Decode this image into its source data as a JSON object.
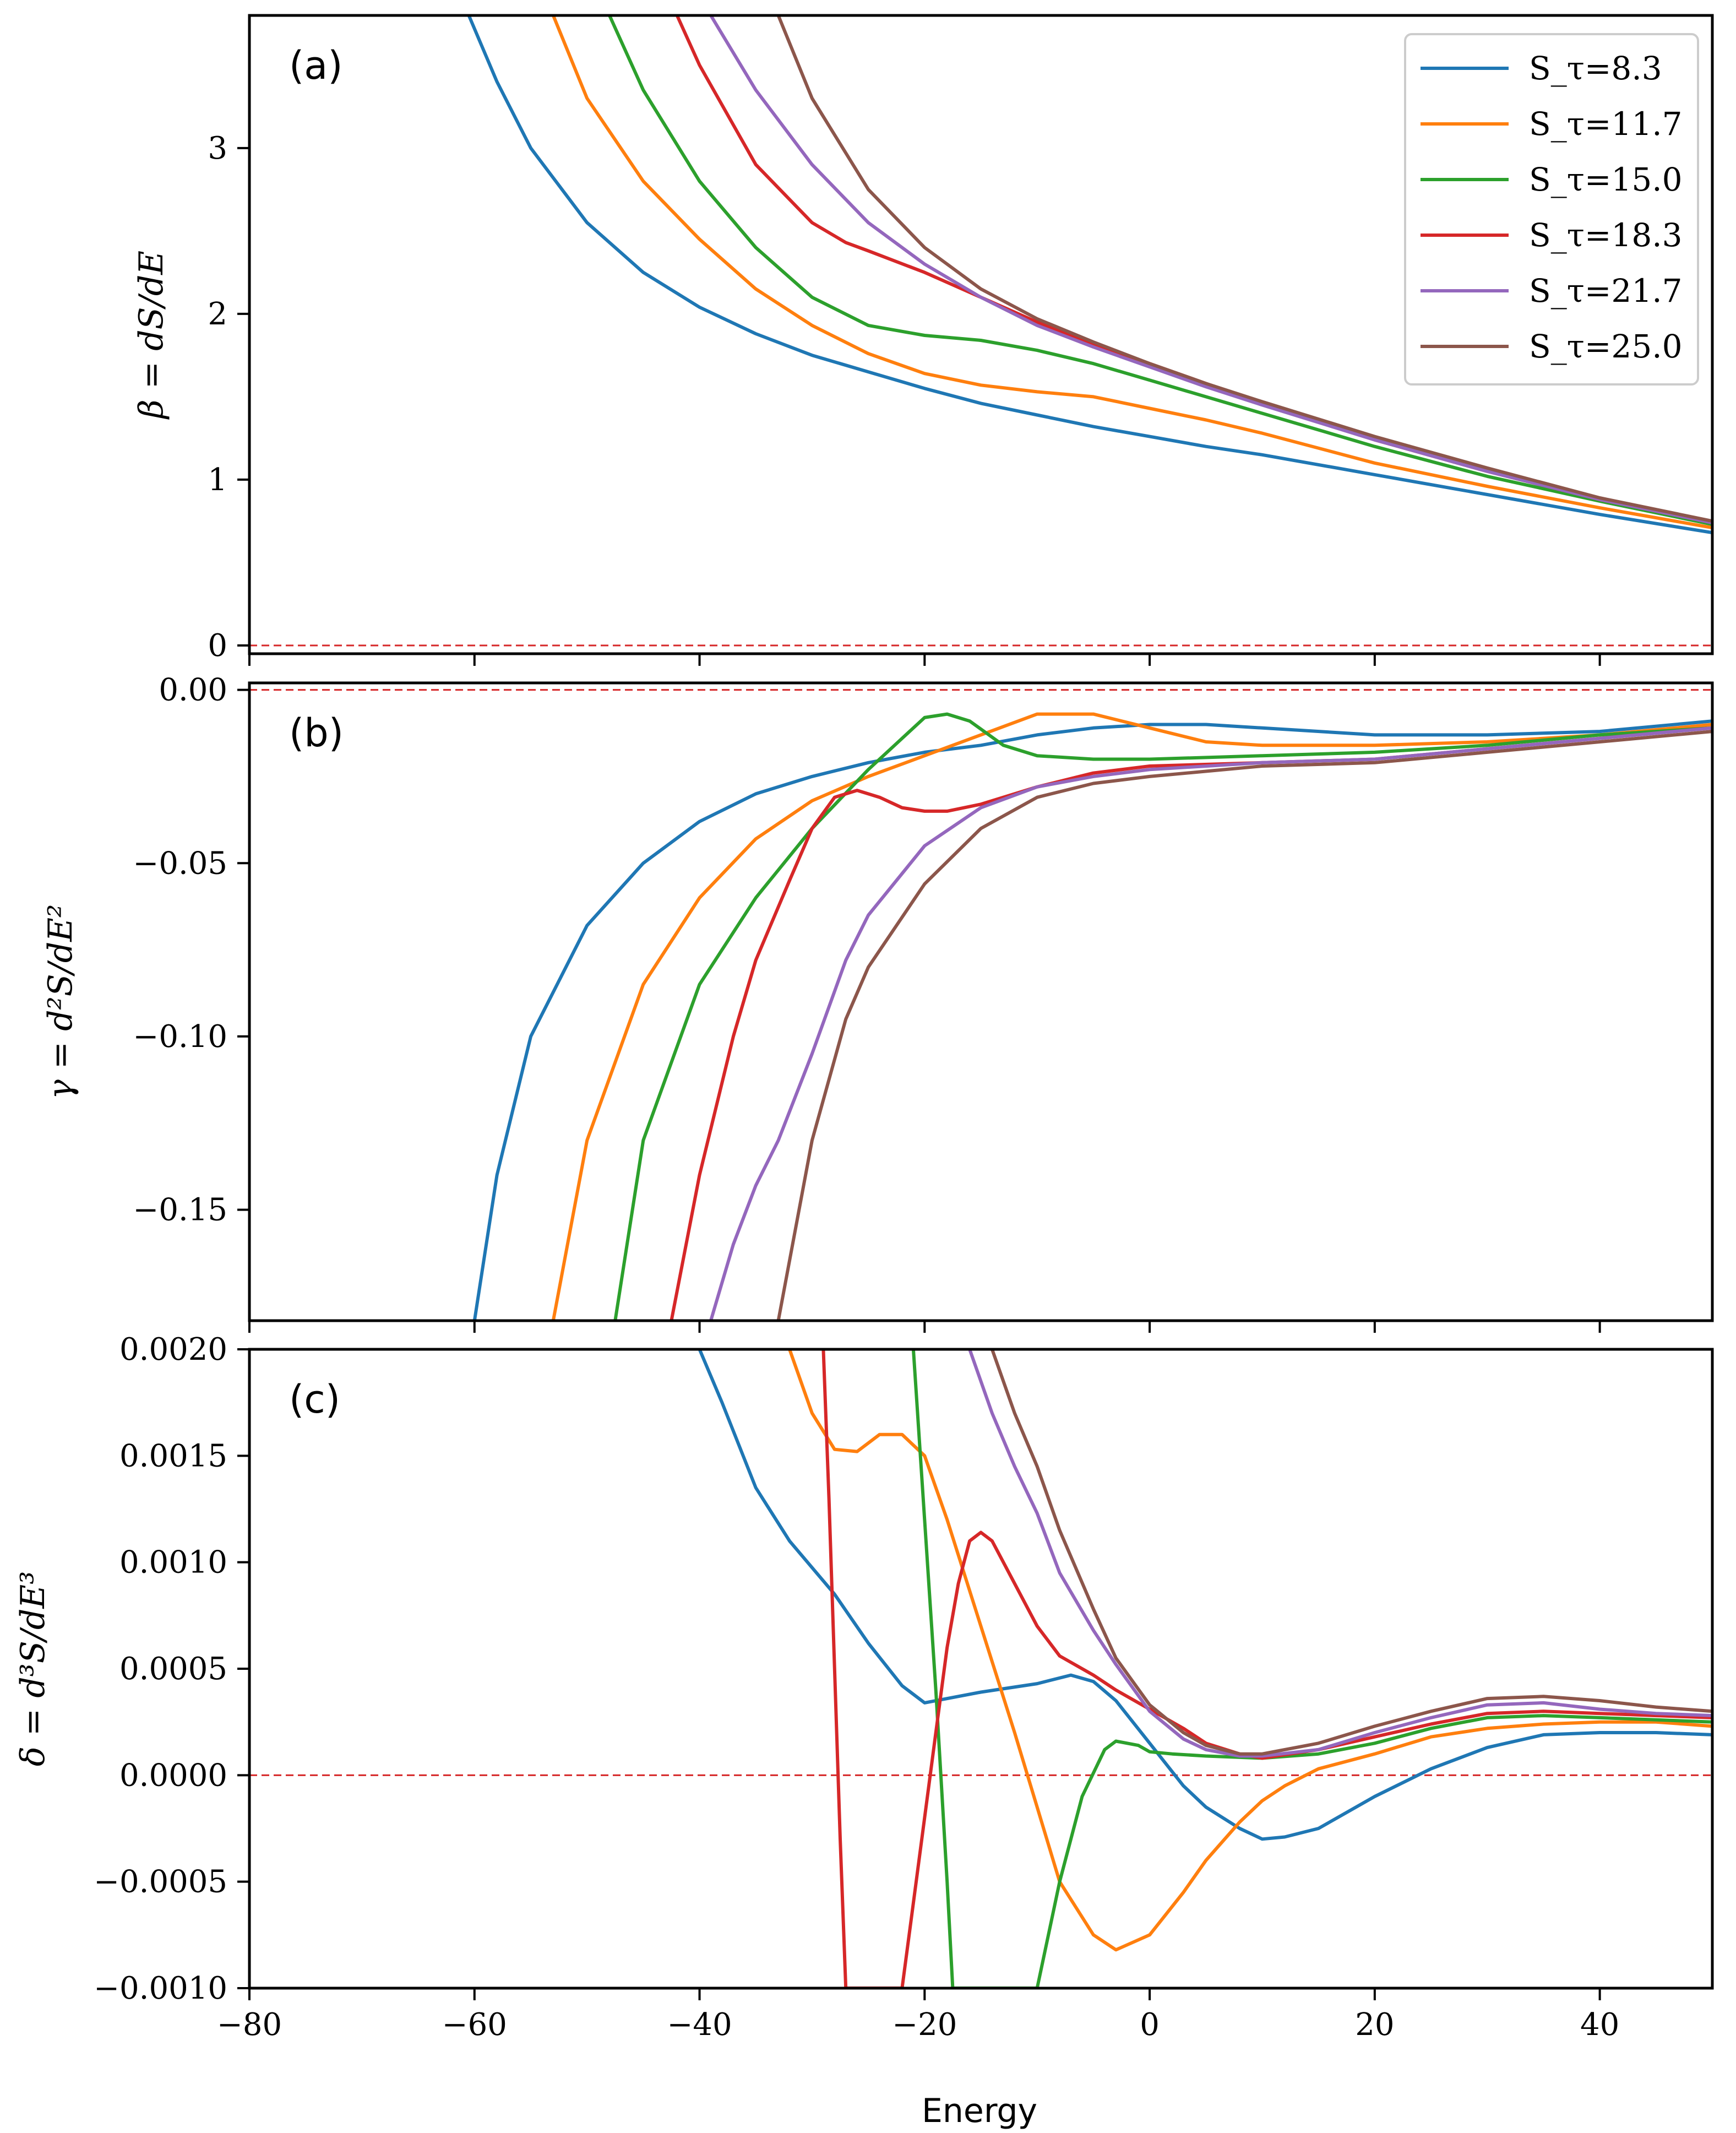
{
  "xlabel": "Energy",
  "colors": {
    "S8.3": "#1f77b4",
    "S11.7": "#ff7f0e",
    "S15.0": "#2ca02c",
    "S18.3": "#d62728",
    "S21.7": "#9467bd",
    "S25.0": "#8c564b",
    "reference": "#d62728"
  },
  "legend": {
    "placement": "top-right of panel (a)",
    "entries": [
      "S_τ=8.3",
      "S_τ=11.7",
      "S_τ=15.0",
      "S_τ=18.3",
      "S_τ=21.7",
      "S_τ=25.0"
    ]
  },
  "chart_data": [
    {
      "type": "line",
      "panel_label": "(a)",
      "ylabel": "β = dS/dE",
      "xlim": [
        -80,
        50
      ],
      "ylim": [
        -0.05,
        3.8
      ],
      "xticks": [
        -80,
        -60,
        -40,
        -20,
        0,
        20,
        40
      ],
      "yticks": [
        0,
        1,
        2,
        3
      ],
      "ytick_labels": [
        "0",
        "1",
        "2",
        "3"
      ],
      "reference_y": 0,
      "grid": false,
      "series": [
        {
          "name": "S_τ=8.3",
          "color_key": "S8.3",
          "x": [
            -60.5,
            -58,
            -55,
            -50,
            -45,
            -40,
            -35,
            -30,
            -25,
            -20,
            -15,
            -10,
            -5,
            0,
            5,
            10,
            20,
            30,
            40,
            50
          ],
          "y": [
            3.8,
            3.4,
            3.0,
            2.55,
            2.25,
            2.04,
            1.88,
            1.75,
            1.65,
            1.55,
            1.46,
            1.39,
            1.32,
            1.26,
            1.2,
            1.15,
            1.03,
            0.91,
            0.79,
            0.68
          ]
        },
        {
          "name": "S_τ=11.7",
          "color_key": "S11.7",
          "x": [
            -53,
            -50,
            -45,
            -40,
            -35,
            -30,
            -25,
            -20,
            -15,
            -10,
            -5,
            0,
            5,
            10,
            20,
            30,
            40,
            50
          ],
          "y": [
            3.8,
            3.3,
            2.8,
            2.45,
            2.15,
            1.93,
            1.76,
            1.64,
            1.57,
            1.53,
            1.5,
            1.43,
            1.36,
            1.28,
            1.1,
            0.96,
            0.83,
            0.71
          ]
        },
        {
          "name": "S_τ=15.0",
          "color_key": "S15.0",
          "x": [
            -48,
            -45,
            -40,
            -35,
            -30,
            -25,
            -20,
            -15,
            -10,
            -5,
            0,
            5,
            10,
            20,
            30,
            40,
            50
          ],
          "y": [
            3.8,
            3.35,
            2.8,
            2.4,
            2.1,
            1.93,
            1.87,
            1.84,
            1.78,
            1.7,
            1.6,
            1.5,
            1.4,
            1.2,
            1.02,
            0.87,
            0.73
          ]
        },
        {
          "name": "S_τ=18.3",
          "color_key": "S18.3",
          "x": [
            -42,
            -40,
            -35,
            -30,
            -27,
            -25,
            -20,
            -15,
            -10,
            -5,
            0,
            5,
            10,
            20,
            30,
            40,
            50
          ],
          "y": [
            3.8,
            3.5,
            2.9,
            2.55,
            2.43,
            2.38,
            2.25,
            2.1,
            1.95,
            1.82,
            1.7,
            1.58,
            1.46,
            1.24,
            1.05,
            0.88,
            0.74
          ]
        },
        {
          "name": "S_τ=21.7",
          "color_key": "S21.7",
          "x": [
            -39,
            -35,
            -30,
            -25,
            -20,
            -15,
            -10,
            -5,
            0,
            5,
            10,
            20,
            30,
            40,
            50
          ],
          "y": [
            3.8,
            3.35,
            2.9,
            2.55,
            2.3,
            2.1,
            1.93,
            1.8,
            1.68,
            1.56,
            1.45,
            1.24,
            1.05,
            0.88,
            0.74
          ]
        },
        {
          "name": "S_τ=25.0",
          "color_key": "S25.0",
          "x": [
            -33,
            -30,
            -25,
            -20,
            -15,
            -10,
            -5,
            0,
            5,
            10,
            20,
            30,
            40,
            50
          ],
          "y": [
            3.8,
            3.3,
            2.75,
            2.4,
            2.15,
            1.97,
            1.83,
            1.7,
            1.58,
            1.47,
            1.26,
            1.07,
            0.89,
            0.75
          ]
        }
      ]
    },
    {
      "type": "line",
      "panel_label": "(b)",
      "ylabel": "γ = d²S/dE²",
      "xlim": [
        -80,
        50
      ],
      "ylim": [
        -0.182,
        0.002
      ],
      "xticks": [
        -80,
        -60,
        -40,
        -20,
        0,
        20,
        40
      ],
      "yticks": [
        0.0,
        -0.05,
        -0.1,
        -0.15
      ],
      "ytick_labels": [
        "0.00",
        "−0.05",
        "−0.10",
        "−0.15"
      ],
      "reference_y": 0,
      "grid": false,
      "series": [
        {
          "name": "S_τ=8.3",
          "color_key": "S8.3",
          "x": [
            -60,
            -58,
            -55,
            -50,
            -45,
            -40,
            -35,
            -30,
            -25,
            -20,
            -15,
            -10,
            -5,
            0,
            5,
            10,
            20,
            30,
            40,
            50
          ],
          "y": [
            -0.182,
            -0.14,
            -0.1,
            -0.068,
            -0.05,
            -0.038,
            -0.03,
            -0.025,
            -0.021,
            -0.018,
            -0.016,
            -0.013,
            -0.011,
            -0.01,
            -0.01,
            -0.011,
            -0.013,
            -0.013,
            -0.012,
            -0.009
          ]
        },
        {
          "name": "S_τ=11.7",
          "color_key": "S11.7",
          "x": [
            -53,
            -50,
            -45,
            -40,
            -35,
            -30,
            -25,
            -20,
            -15,
            -10,
            -5,
            0,
            5,
            10,
            20,
            30,
            40,
            50
          ],
          "y": [
            -0.182,
            -0.13,
            -0.085,
            -0.06,
            -0.043,
            -0.032,
            -0.025,
            -0.019,
            -0.013,
            -0.007,
            -0.007,
            -0.011,
            -0.015,
            -0.016,
            -0.016,
            -0.015,
            -0.013,
            -0.01
          ]
        },
        {
          "name": "S_τ=15.0",
          "color_key": "S15.0",
          "x": [
            -47.5,
            -45,
            -40,
            -35,
            -30,
            -25,
            -22,
            -20,
            -18,
            -16,
            -13,
            -10,
            -5,
            0,
            10,
            20,
            30,
            40,
            50
          ],
          "y": [
            -0.182,
            -0.13,
            -0.085,
            -0.06,
            -0.04,
            -0.023,
            -0.014,
            -0.008,
            -0.007,
            -0.009,
            -0.016,
            -0.019,
            -0.02,
            -0.02,
            -0.019,
            -0.018,
            -0.016,
            -0.013,
            -0.011
          ]
        },
        {
          "name": "S_τ=18.3",
          "color_key": "S18.3",
          "x": [
            -42.5,
            -40,
            -37,
            -35,
            -32,
            -30,
            -28,
            -26,
            -24,
            -22,
            -20,
            -18,
            -15,
            -10,
            -5,
            0,
            10,
            20,
            30,
            40,
            50
          ],
          "y": [
            -0.182,
            -0.14,
            -0.1,
            -0.078,
            -0.055,
            -0.04,
            -0.031,
            -0.029,
            -0.031,
            -0.034,
            -0.035,
            -0.035,
            -0.033,
            -0.028,
            -0.024,
            -0.022,
            -0.021,
            -0.02,
            -0.017,
            -0.014,
            -0.011
          ]
        },
        {
          "name": "S_τ=21.7",
          "color_key": "S21.7",
          "x": [
            -39,
            -37,
            -35,
            -33,
            -30,
            -27,
            -25,
            -20,
            -15,
            -10,
            -5,
            0,
            10,
            20,
            30,
            40,
            50
          ],
          "y": [
            -0.182,
            -0.16,
            -0.143,
            -0.13,
            -0.105,
            -0.078,
            -0.065,
            -0.045,
            -0.034,
            -0.028,
            -0.025,
            -0.023,
            -0.021,
            -0.02,
            -0.017,
            -0.014,
            -0.011
          ]
        },
        {
          "name": "S_τ=25.0",
          "color_key": "S25.0",
          "x": [
            -33,
            -30,
            -27,
            -25,
            -20,
            -15,
            -10,
            -5,
            0,
            10,
            20,
            30,
            40,
            50
          ],
          "y": [
            -0.182,
            -0.13,
            -0.095,
            -0.08,
            -0.056,
            -0.04,
            -0.031,
            -0.027,
            -0.025,
            -0.022,
            -0.021,
            -0.018,
            -0.015,
            -0.012
          ]
        }
      ]
    },
    {
      "type": "line",
      "panel_label": "(c)",
      "ylabel": "δ = d³S/dE³",
      "xlim": [
        -80,
        50
      ],
      "ylim": [
        -0.001,
        0.002
      ],
      "xticks": [
        -80,
        -60,
        -40,
        -20,
        0,
        20,
        40
      ],
      "xtick_labels": [
        "−80",
        "−60",
        "−40",
        "−20",
        "0",
        "20",
        "40"
      ],
      "yticks": [
        0.002,
        0.0015,
        0.001,
        0.0005,
        0.0,
        -0.0005,
        -0.001
      ],
      "ytick_labels": [
        "0.0020",
        "0.0015",
        "0.0010",
        "0.0005",
        "0.0000",
        "−0.0005",
        "−0.0010"
      ],
      "reference_y": 0,
      "grid": false,
      "series": [
        {
          "name": "S_τ=8.3",
          "color_key": "S8.3",
          "x": [
            -40,
            -38,
            -35,
            -32,
            -28,
            -25,
            -22,
            -20,
            -15,
            -10,
            -7,
            -5,
            -3,
            0,
            3,
            5,
            8,
            10,
            12,
            15,
            20,
            25,
            30,
            35,
            40,
            45,
            50
          ],
          "y": [
            0.002,
            0.00175,
            0.00135,
            0.0011,
            0.00085,
            0.00062,
            0.00042,
            0.00034,
            0.00039,
            0.00043,
            0.00047,
            0.00044,
            0.00035,
            0.00015,
            -5e-05,
            -0.00015,
            -0.00025,
            -0.0003,
            -0.00029,
            -0.00025,
            -0.0001,
            3e-05,
            0.00013,
            0.00019,
            0.0002,
            0.0002,
            0.00019
          ]
        },
        {
          "name": "S_τ=11.7",
          "color_key": "S11.7",
          "x": [
            -32,
            -30,
            -28,
            -26,
            -24,
            -22,
            -20,
            -18,
            -15,
            -12,
            -10,
            -8,
            -5,
            -3,
            0,
            3,
            5,
            8,
            10,
            12,
            15,
            20,
            25,
            30,
            35,
            40,
            45,
            50
          ],
          "y": [
            0.002,
            0.0017,
            0.00153,
            0.00152,
            0.0016,
            0.0016,
            0.0015,
            0.0012,
            0.0007,
            0.0002,
            -0.00015,
            -0.0005,
            -0.00075,
            -0.00082,
            -0.00075,
            -0.00055,
            -0.0004,
            -0.00022,
            -0.00012,
            -5e-05,
            3e-05,
            0.0001,
            0.00018,
            0.00022,
            0.00024,
            0.00025,
            0.00025,
            0.00023
          ]
        },
        {
          "name": "S_τ=15.0",
          "color_key": "S15.0",
          "x": [
            -21,
            -20,
            -19,
            -18,
            -17.5,
            -10,
            -8,
            -6,
            -4,
            -3,
            -1,
            0,
            2,
            5,
            10,
            15,
            20,
            25,
            30,
            35,
            40,
            45,
            50
          ],
          "y": [
            0.002,
            0.0012,
            0.0004,
            -0.0005,
            -0.001,
            -0.001,
            -0.0005,
            -0.0001,
            0.00012,
            0.00016,
            0.00014,
            0.00011,
            0.0001,
            9e-05,
            8e-05,
            0.0001,
            0.00015,
            0.00022,
            0.00027,
            0.00028,
            0.00027,
            0.00026,
            0.00025
          ]
        },
        {
          "name": "S_τ=18.3",
          "color_key": "S18.3",
          "x": [
            -29,
            -28.5,
            -28,
            -27.5,
            -27,
            -22,
            -21,
            -20,
            -19,
            -18,
            -17,
            -16,
            -15,
            -14,
            -12,
            -10,
            -8,
            -5,
            -3,
            0,
            3,
            5,
            8,
            10,
            15,
            20,
            25,
            30,
            35,
            40,
            45,
            50
          ],
          "y": [
            0.002,
            0.0013,
            0.0005,
            -0.0003,
            -0.001,
            -0.001,
            -0.0006,
            -0.0002,
            0.0002,
            0.0006,
            0.0009,
            0.0011,
            0.00114,
            0.0011,
            0.0009,
            0.0007,
            0.00056,
            0.00047,
            0.0004,
            0.00031,
            0.00022,
            0.00015,
            0.0001,
            8e-05,
            0.00012,
            0.00018,
            0.00024,
            0.00029,
            0.0003,
            0.00029,
            0.00028,
            0.00027
          ]
        },
        {
          "name": "S_τ=21.7",
          "color_key": "S21.7",
          "x": [
            -16,
            -14,
            -12,
            -10,
            -8,
            -5,
            -3,
            0,
            3,
            5,
            8,
            10,
            15,
            20,
            25,
            30,
            35,
            40,
            45,
            50
          ],
          "y": [
            0.002,
            0.0017,
            0.00145,
            0.00123,
            0.00095,
            0.00068,
            0.00052,
            0.0003,
            0.00017,
            0.00012,
            9e-05,
            9e-05,
            0.00012,
            0.0002,
            0.00027,
            0.00033,
            0.00034,
            0.00031,
            0.00029,
            0.00028
          ]
        },
        {
          "name": "S_τ=25.0",
          "color_key": "S25.0",
          "x": [
            -14,
            -12,
            -10,
            -8,
            -5,
            -3,
            0,
            3,
            5,
            8,
            10,
            15,
            20,
            25,
            30,
            35,
            40,
            45,
            50
          ],
          "y": [
            0.002,
            0.0017,
            0.00145,
            0.00115,
            0.00078,
            0.00055,
            0.00033,
            0.0002,
            0.00014,
            0.0001,
            0.0001,
            0.00015,
            0.00023,
            0.0003,
            0.00036,
            0.00037,
            0.00035,
            0.00032,
            0.0003
          ]
        }
      ]
    }
  ]
}
